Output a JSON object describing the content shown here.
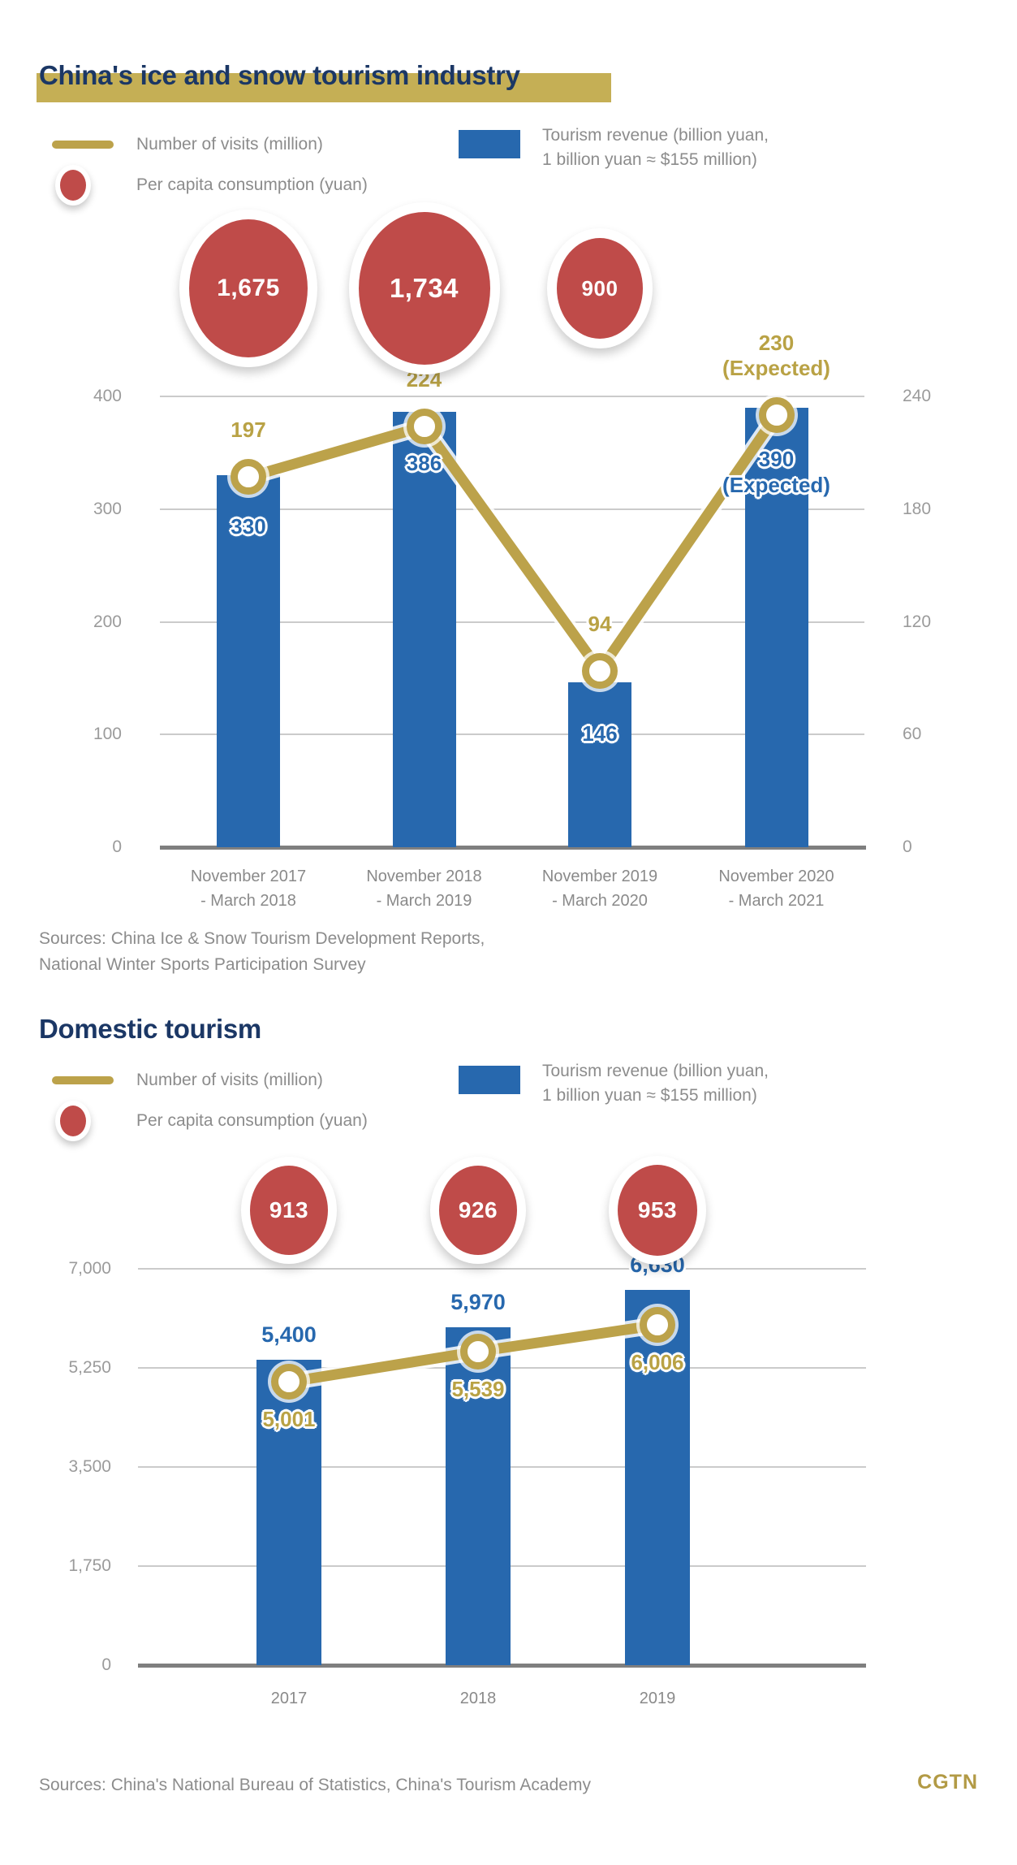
{
  "colors": {
    "navy": "#1B3765",
    "gold": "#BCA24A",
    "gold_highlight": "#C5AF55",
    "gold_text": "#B9A245",
    "blue": "#2768AE",
    "red": "#BF4B49",
    "gridline": "#CBCBCB",
    "baseline": "#7F7F7F",
    "axis_text": "#9B9B9B",
    "muted_text": "#8A8A8A"
  },
  "section1": {
    "title": "China's ice and snow tourism industry",
    "legend": {
      "visits_label": "Number of visits (million)",
      "revenue_label_line1": "Tourism revenue (billion yuan,",
      "revenue_label_line2": "1 billion yuan ≈ $155 million)",
      "per_capita_label": "Per capita consumption (yuan)"
    },
    "sources_line1": "Sources: China Ice & Snow Tourism Development Reports,",
    "sources_line2": "National Winter Sports Participation Survey"
  },
  "section2": {
    "title": "Domestic tourism",
    "legend": {
      "visits_label": "Number of visits (million)",
      "revenue_label_line1": "Tourism revenue (billion yuan,",
      "revenue_label_line2": "1 billion yuan ≈ $155 million)",
      "per_capita_label": "Per capita consumption (yuan)"
    },
    "sources_line1": "Sources: China's National Bureau of Statistics, China's Tourism Academy"
  },
  "footer": {
    "logo": "CGTN"
  },
  "chart_data": [
    {
      "id": "ice_snow",
      "type": "combo (bar+line+bubble)",
      "title": "China's ice and snow tourism industry",
      "categories": [
        "November 2017\n- March 2018",
        "November 2018\n- March 2019",
        "November 2019\n- March 2020",
        "November 2020\n- March 2021"
      ],
      "series": [
        {
          "name": "Tourism revenue (billion yuan, 1 billion yuan ≈ $155 million)",
          "type": "bar",
          "axis": "left",
          "values": [
            330,
            386,
            146,
            390
          ],
          "labels": [
            "330",
            "386",
            "146",
            "390\n(Expected)"
          ]
        },
        {
          "name": "Number of visits (million)",
          "type": "line",
          "axis": "right",
          "values": [
            197,
            224,
            94,
            230
          ],
          "labels": [
            "197",
            "224",
            "94",
            "230\n(Expected)"
          ]
        },
        {
          "name": "Per capita consumption (yuan)",
          "type": "bubble",
          "values": [
            1675,
            1734,
            900,
            null
          ],
          "labels": [
            "1,675",
            "1,734",
            "900",
            null
          ]
        }
      ],
      "left_axis": {
        "min": 0,
        "max": 400,
        "tick_labels": [
          "400",
          "300",
          "200",
          "100",
          "0"
        ]
      },
      "right_axis": {
        "min": 0,
        "max": 240,
        "tick_labels": [
          "240",
          "180",
          "120",
          "60",
          "0"
        ]
      },
      "grid": true,
      "legend_position": "top"
    },
    {
      "id": "domestic",
      "type": "combo (bar+line+bubble)",
      "title": "Domestic tourism",
      "categories": [
        "2017",
        "2018",
        "2019"
      ],
      "series": [
        {
          "name": "Tourism revenue (billion yuan, 1 billion yuan ≈ $155 million)",
          "type": "bar",
          "axis": "left",
          "values": [
            5400,
            5970,
            6630
          ],
          "labels": [
            "5,400",
            "5,970",
            "6,630"
          ]
        },
        {
          "name": "Number of visits (million)",
          "type": "line",
          "axis": "left",
          "values": [
            5001,
            5539,
            6006
          ],
          "labels": [
            "5,001",
            "5,539",
            "6,006"
          ]
        },
        {
          "name": "Per capita consumption (yuan)",
          "type": "bubble",
          "values": [
            913,
            926,
            953
          ],
          "labels": [
            "913",
            "926",
            "953"
          ]
        }
      ],
      "left_axis": {
        "min": 0,
        "max": 7000,
        "tick_labels": [
          "7,000",
          "5,250",
          "3,500",
          "1,750",
          "0"
        ]
      },
      "grid": true,
      "legend_position": "top"
    }
  ]
}
